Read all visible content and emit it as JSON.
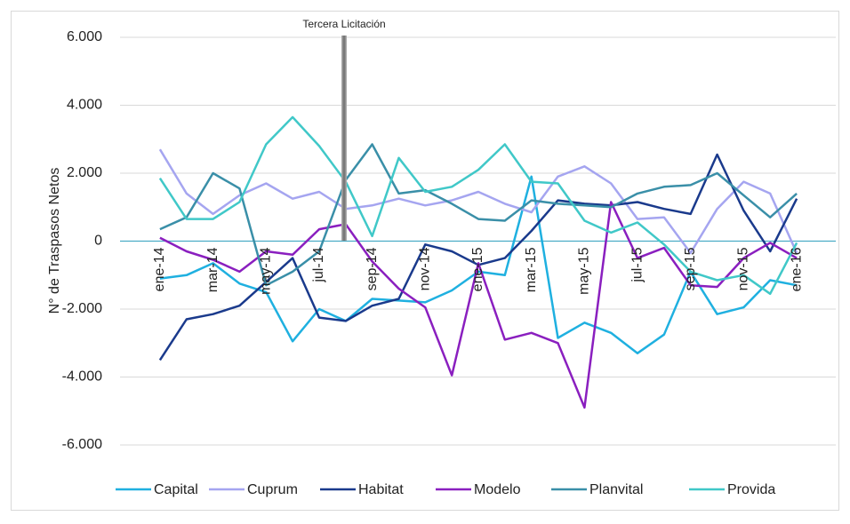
{
  "chart_data": {
    "type": "line",
    "annotation": "Tercera Licitación",
    "y_label": "N° de Traspasos Netos",
    "categories": [
      "ene-14",
      null,
      "mar-14",
      null,
      "may-14",
      null,
      "jul-14",
      null,
      "sep-14",
      null,
      "nov-14",
      null,
      "ene-15",
      null,
      "mar-15",
      null,
      "may-15",
      null,
      "jul-15",
      null,
      "sep-15",
      null,
      "nov-15",
      null,
      "ene-16"
    ],
    "series": [
      {
        "name": "Capital",
        "color": "#1fb0e0",
        "values": [
          -1100,
          -1000,
          -650,
          -1250,
          -1500,
          -2950,
          -2000,
          -2350,
          -1700,
          -1750,
          -1800,
          -1450,
          -900,
          -1000,
          1900,
          -2850,
          -2400,
          -2700,
          -3300,
          -2750,
          -900,
          -2150,
          -1950,
          -1150,
          -1300
        ]
      },
      {
        "name": "Cuprum",
        "color": "#a5a5f0",
        "values": [
          2700,
          1400,
          800,
          1350,
          1700,
          1250,
          1450,
          950,
          1050,
          1250,
          1050,
          1200,
          1450,
          1100,
          850,
          1900,
          2200,
          1700,
          650,
          700,
          -350,
          950,
          1750,
          1400,
          -350
        ]
      },
      {
        "name": "Habitat",
        "color": "#1a3a8c",
        "values": [
          -3500,
          -2300,
          -2150,
          -1900,
          -1200,
          -500,
          -2250,
          -2350,
          -1900,
          -1700,
          -100,
          -300,
          -700,
          -500,
          300,
          1200,
          1100,
          1050,
          1150,
          950,
          800,
          2550,
          900,
          -300,
          1250
        ]
      },
      {
        "name": "Modelo",
        "color": "#8a1fbf",
        "values": [
          100,
          -300,
          -550,
          -900,
          -300,
          -400,
          350,
          500,
          -600,
          -1400,
          -1950,
          -3950,
          -650,
          -2900,
          -2700,
          -3000,
          -4900,
          1150,
          -500,
          -200,
          -1300,
          -1350,
          -500,
          -50,
          -500
        ]
      },
      {
        "name": "Planvital",
        "color": "#3a8fa8",
        "values": [
          350,
          700,
          2000,
          1550,
          -1300,
          -900,
          -300,
          1800,
          2850,
          1400,
          1500,
          1100,
          650,
          600,
          1200,
          1100,
          1050,
          1000,
          1400,
          1600,
          1650,
          2000,
          1350,
          700,
          1400
        ]
      },
      {
        "name": "Provida",
        "color": "#40c8c8",
        "values": [
          1850,
          650,
          650,
          1150,
          2850,
          3650,
          2800,
          1750,
          150,
          2450,
          1450,
          1600,
          2100,
          2850,
          1750,
          1700,
          600,
          250,
          550,
          -100,
          -900,
          -1150,
          -1000,
          -1550,
          -50
        ]
      }
    ],
    "ylim": [
      -6000,
      6000
    ],
    "yticks": [
      {
        "value": -6000,
        "label": "-6.000"
      },
      {
        "value": -4000,
        "label": "-4.000"
      },
      {
        "value": -2000,
        "label": "-2.000"
      },
      0,
      {
        "value": 2000,
        "label": "2.000"
      },
      {
        "value": 4000,
        "label": "4.000"
      },
      {
        "value": 6000,
        "label": "6.000"
      }
    ],
    "grid": true,
    "legend": "bottom"
  }
}
